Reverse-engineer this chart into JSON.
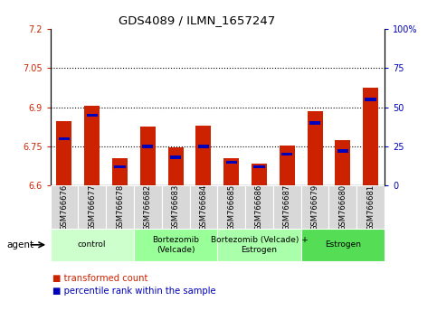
{
  "title": "GDS4089 / ILMN_1657247",
  "samples": [
    "GSM766676",
    "GSM766677",
    "GSM766678",
    "GSM766682",
    "GSM766683",
    "GSM766684",
    "GSM766685",
    "GSM766686",
    "GSM766687",
    "GSM766679",
    "GSM766680",
    "GSM766681"
  ],
  "transformed_count": [
    6.845,
    6.905,
    6.705,
    6.825,
    6.745,
    6.83,
    6.705,
    6.685,
    6.755,
    6.885,
    6.775,
    6.975
  ],
  "percentile_rank": [
    30,
    45,
    12,
    25,
    18,
    25,
    15,
    12,
    20,
    40,
    22,
    55
  ],
  "ylim_left": [
    6.6,
    7.2
  ],
  "ylim_right": [
    0,
    100
  ],
  "yticks_left": [
    6.6,
    6.75,
    6.9,
    7.05,
    7.2
  ],
  "yticks_right": [
    0,
    25,
    50,
    75,
    100
  ],
  "grid_lines": [
    6.75,
    6.9,
    7.05
  ],
  "red_color": "#cc2200",
  "blue_color": "#0000bb",
  "bar_base": 6.6,
  "groups": [
    {
      "label": "control",
      "start": 0,
      "end": 3,
      "color": "#ccffcc"
    },
    {
      "label": "Bortezomib\n(Velcade)",
      "start": 3,
      "end": 6,
      "color": "#99ff99"
    },
    {
      "label": "Bortezomib (Velcade) +\nEstrogen",
      "start": 6,
      "end": 9,
      "color": "#aaffaa"
    },
    {
      "label": "Estrogen",
      "start": 9,
      "end": 12,
      "color": "#55dd55"
    }
  ],
  "legend_red": "transformed count",
  "legend_blue": "percentile rank within the sample",
  "agent_label": "agent"
}
